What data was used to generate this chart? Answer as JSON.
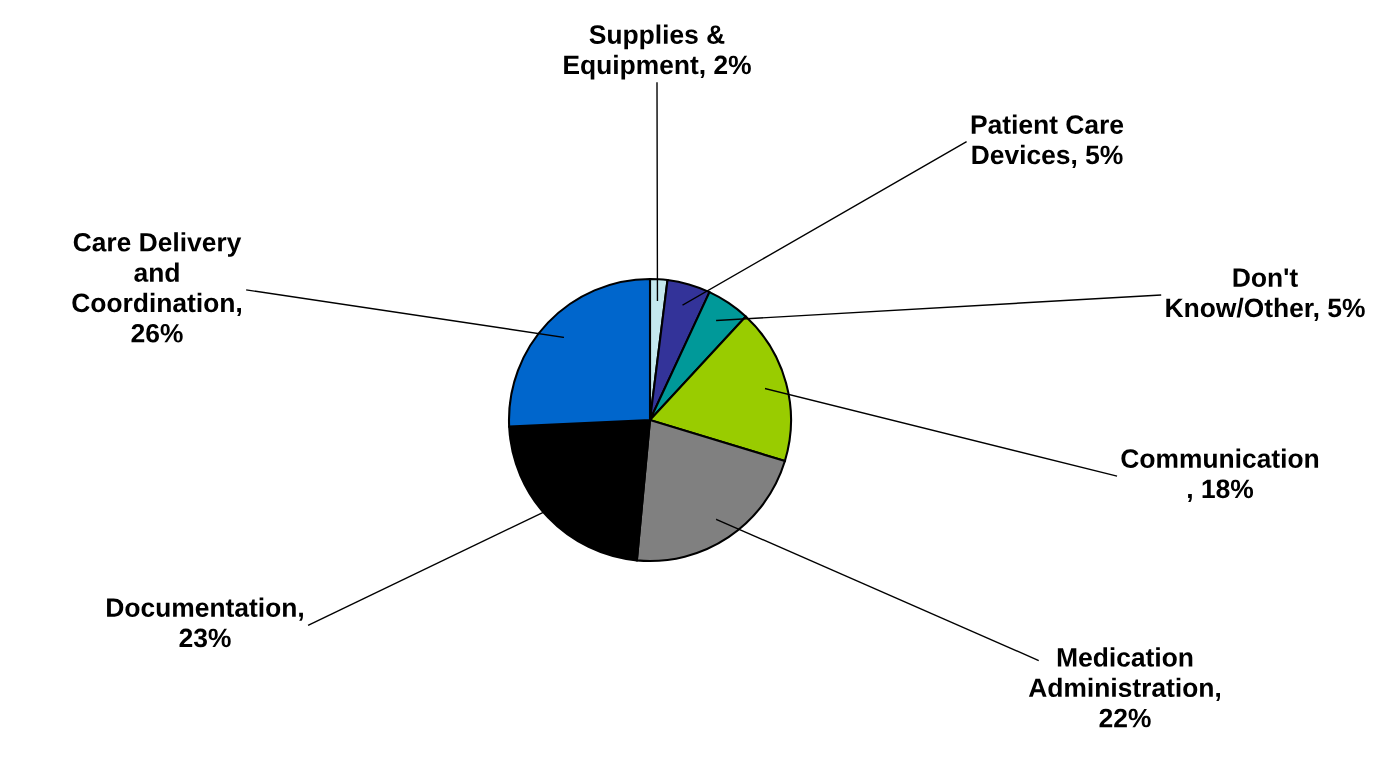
{
  "chart_data": {
    "type": "pie",
    "categories": [
      "Supplies &\nEquipment, 2%",
      "Patient Care\nDevices, 5%",
      "Don't\nKnow/Other, 5%",
      "Communication\n, 18%",
      "Medication\nAdministration,\n22%",
      "Documentation,\n23%",
      "Care Delivery\nand\nCoordination,\n26%"
    ],
    "values": [
      2,
      5,
      5,
      18,
      22,
      23,
      26
    ],
    "colors": [
      "#c4e8ee",
      "#333399",
      "#009999",
      "#99cc00",
      "#808080",
      "#000000",
      "#0066cc"
    ]
  }
}
